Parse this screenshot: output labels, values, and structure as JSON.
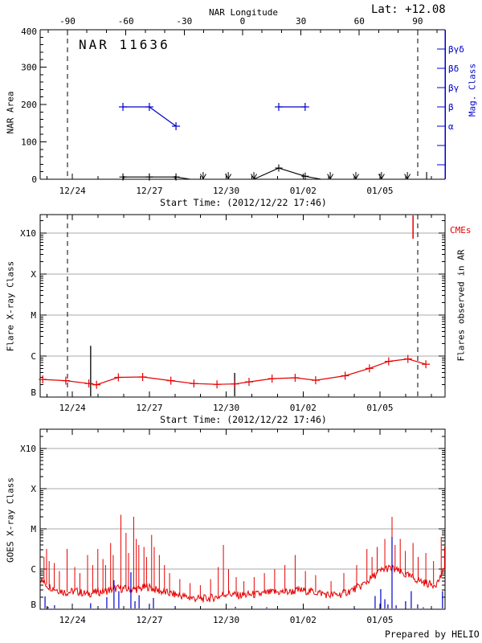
{
  "labels": {
    "title": "NAR 11636",
    "lat": "Lat: +12.08",
    "nar_longitude": "NAR Longitude",
    "nar_area": "NAR Area",
    "mag_class": "Mag. Class",
    "start_time": "Start Time: (2012/12/22 17:46)",
    "flare_xray": "Flare X-ray Class",
    "cmes": "CMEs",
    "flares_in_ar": "Flares observed in AR",
    "goes_xray": "GOES X-ray Class",
    "prepared_by": "Prepared by HELIO"
  },
  "colors": {
    "black": "#000000",
    "blue": "#0000cc",
    "red": "#e60000",
    "grid_gray": "#a8a8a8"
  },
  "time_axis": {
    "start_label": "Start Time: (2012/12/22 17:46)",
    "tick_labels": [
      "12/24",
      "12/27",
      "12/30",
      "01/02",
      "01/05"
    ],
    "tick_days": [
      1.26,
      4.26,
      7.26,
      10.26,
      13.26
    ],
    "minor_day_offset": 0.26,
    "days_total": 15.8
  },
  "longitude_axis": {
    "label": "NAR Longitude",
    "tick_labels": [
      "-90",
      "-60",
      "-30",
      "0",
      "30",
      "60",
      "90"
    ],
    "tick_values": [
      -90,
      -60,
      -30,
      0,
      30,
      60,
      90
    ],
    "limb_days": [
      1.066,
      14.73
    ]
  },
  "chart_data": [
    {
      "panel": "nar_area",
      "type": "line",
      "ylabel": "NAR Area",
      "ylim": [
        0,
        400
      ],
      "ytick_labels": [
        "0",
        "100",
        "200",
        "300",
        "400"
      ],
      "right_axis": {
        "label": "Mag. Class",
        "level_labels": [
          "βγδ",
          "βδ",
          "βγ",
          "β",
          "α"
        ]
      },
      "area_series": {
        "line_t": [
          3.23,
          4.26,
          5.3,
          5.86,
          8.34,
          9.31,
          10.34,
          10.97,
          15.08
        ],
        "line_area": [
          6,
          6,
          6,
          0,
          0,
          30,
          8,
          0,
          0
        ],
        "marker_t": [
          3.23,
          4.26,
          5.3,
          9.31,
          10.34
        ],
        "marker_area": [
          6,
          6,
          6,
          30,
          8
        ],
        "zero_arrow_t": [
          6.36,
          7.34,
          8.34,
          11.32,
          12.32,
          13.32,
          14.33
        ],
        "end_tick_t": 15.08
      },
      "mag_series": {
        "segments": [
          {
            "t": [
              3.23,
              4.26,
              5.3
            ],
            "class": [
              "β",
              "β",
              "α"
            ]
          },
          {
            "t": [
              9.31,
              10.34
            ],
            "class": [
              "β",
              "β"
            ]
          }
        ]
      }
    },
    {
      "panel": "flare_xray",
      "type": "line",
      "ylabel": "Flare X-ray Class",
      "ytick_labels": [
        "B",
        "C",
        "M",
        "X",
        "X10"
      ],
      "right_label": "Flares observed in AR",
      "cme_label": "CMEs",
      "flare_line": {
        "t": [
          0.1,
          1.0,
          1.9,
          2.2,
          3.05,
          4.0,
          5.1,
          6.0,
          6.9,
          7.6,
          8.15,
          9.05,
          9.95,
          10.75,
          11.9,
          12.85,
          13.6,
          14.35,
          15.05
        ],
        "level": [
          0.43,
          0.4,
          0.33,
          0.3,
          0.48,
          0.49,
          0.4,
          0.33,
          0.31,
          0.32,
          0.37,
          0.45,
          0.47,
          0.41,
          0.52,
          0.7,
          0.87,
          0.93,
          0.8
        ]
      },
      "flare_events": [
        [
          1.97,
          1.25
        ],
        [
          7.59,
          0.59
        ]
      ],
      "cme_events_t": [
        14.55
      ]
    },
    {
      "panel": "goes_xray",
      "type": "line",
      "ylabel": "GOES X-ray Class",
      "ytick_labels": [
        "B",
        "C",
        "M",
        "X",
        "X10"
      ],
      "noise_amplitude": 0.1,
      "baseline": {
        "t": [
          0.0,
          0.3,
          0.7,
          1.0,
          1.4,
          1.8,
          2.2,
          2.6,
          3.0,
          3.4,
          3.8,
          4.2,
          4.6,
          5.0,
          5.4,
          5.8,
          6.2,
          6.6,
          7.0,
          7.3,
          7.7,
          8.1,
          8.5,
          8.9,
          9.3,
          9.7,
          10.1,
          10.5,
          10.9,
          11.3,
          11.7,
          12.1,
          12.5,
          12.9,
          13.2,
          13.5,
          13.8,
          14.1,
          14.4,
          14.7,
          15.0,
          15.3,
          15.5,
          15.7,
          15.8
        ],
        "level": [
          0.75,
          0.58,
          0.48,
          0.42,
          0.45,
          0.38,
          0.42,
          0.46,
          0.52,
          0.5,
          0.5,
          0.56,
          0.46,
          0.4,
          0.35,
          0.29,
          0.26,
          0.27,
          0.32,
          0.4,
          0.34,
          0.36,
          0.37,
          0.41,
          0.43,
          0.43,
          0.47,
          0.45,
          0.41,
          0.35,
          0.37,
          0.46,
          0.57,
          0.76,
          0.92,
          1.02,
          1.0,
          0.9,
          0.82,
          0.74,
          0.66,
          0.61,
          0.66,
          0.9,
          1.0
        ]
      },
      "red_spikes": [
        [
          0.15,
          1.3
        ],
        [
          0.25,
          1.5
        ],
        [
          0.35,
          1.2
        ],
        [
          0.55,
          1.15
        ],
        [
          0.75,
          0.95
        ],
        [
          1.05,
          1.5
        ],
        [
          1.35,
          1.05
        ],
        [
          1.55,
          0.9
        ],
        [
          1.85,
          1.35
        ],
        [
          2.05,
          1.1
        ],
        [
          2.25,
          1.5
        ],
        [
          2.45,
          1.25
        ],
        [
          2.55,
          1.1
        ],
        [
          2.75,
          1.65
        ],
        [
          2.85,
          1.35
        ],
        [
          3.15,
          2.35
        ],
        [
          3.35,
          1.9
        ],
        [
          3.45,
          1.4
        ],
        [
          3.65,
          2.3
        ],
        [
          3.75,
          1.75
        ],
        [
          3.85,
          1.6
        ],
        [
          4.05,
          1.55
        ],
        [
          4.15,
          1.3
        ],
        [
          4.35,
          1.85
        ],
        [
          4.45,
          1.55
        ],
        [
          4.65,
          1.35
        ],
        [
          4.85,
          1.1
        ],
        [
          5.05,
          0.9
        ],
        [
          5.45,
          0.75
        ],
        [
          5.85,
          0.65
        ],
        [
          6.25,
          0.6
        ],
        [
          6.65,
          0.75
        ],
        [
          6.95,
          1.05
        ],
        [
          7.15,
          1.6
        ],
        [
          7.35,
          1.0
        ],
        [
          7.65,
          0.8
        ],
        [
          7.95,
          0.7
        ],
        [
          8.35,
          0.8
        ],
        [
          8.75,
          0.9
        ],
        [
          9.15,
          1.0
        ],
        [
          9.55,
          1.1
        ],
        [
          9.95,
          1.35
        ],
        [
          10.35,
          0.95
        ],
        [
          10.75,
          0.85
        ],
        [
          11.35,
          0.7
        ],
        [
          11.85,
          0.9
        ],
        [
          12.35,
          1.1
        ],
        [
          12.75,
          1.5
        ],
        [
          12.95,
          1.3
        ],
        [
          13.15,
          1.55
        ],
        [
          13.45,
          1.75
        ],
        [
          13.73,
          2.3
        ],
        [
          13.85,
          1.6
        ],
        [
          14.05,
          1.75
        ],
        [
          14.25,
          1.45
        ],
        [
          14.55,
          1.65
        ],
        [
          14.75,
          1.3
        ],
        [
          15.05,
          1.4
        ],
        [
          15.35,
          1.2
        ],
        [
          15.65,
          1.8
        ],
        [
          15.78,
          1.55
        ]
      ],
      "blue_spikes": [
        [
          0.19,
          0.32
        ],
        [
          0.31,
          0.06
        ],
        [
          0.56,
          0.1
        ],
        [
          1.97,
          0.15
        ],
        [
          2.6,
          0.3
        ],
        [
          2.88,
          0.72
        ],
        [
          3.07,
          0.45
        ],
        [
          3.54,
          0.92
        ],
        [
          3.7,
          0.2
        ],
        [
          3.86,
          0.35
        ],
        [
          4.26,
          0.1
        ],
        [
          4.42,
          0.28
        ],
        [
          5.27,
          0.08
        ],
        [
          7.62,
          0.06
        ],
        [
          8.84,
          0.05
        ],
        [
          12.26,
          0.04
        ],
        [
          13.07,
          0.33
        ],
        [
          13.29,
          0.5
        ],
        [
          13.45,
          0.25
        ],
        [
          13.57,
          0.12
        ],
        [
          13.73,
          1.8
        ],
        [
          13.89,
          0.1
        ],
        [
          14.26,
          0.2
        ],
        [
          14.48,
          0.45
        ],
        [
          14.73,
          0.12
        ],
        [
          14.95,
          0.05
        ],
        [
          15.7,
          0.45
        ]
      ]
    }
  ]
}
